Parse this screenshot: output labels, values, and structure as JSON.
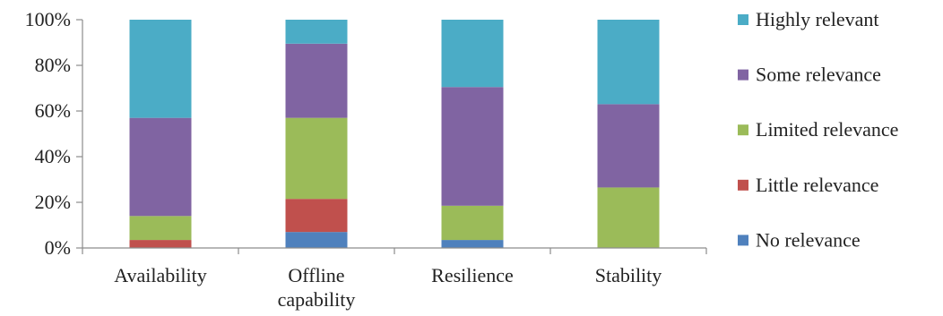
{
  "chart_data": {
    "type": "bar",
    "stacked": true,
    "percent_stacked": true,
    "title": "",
    "xlabel": "",
    "ylabel": "",
    "ylim": [
      0,
      100
    ],
    "y_ticks": [
      "0%",
      "20%",
      "40%",
      "60%",
      "80%",
      "100%"
    ],
    "grid": false,
    "legend_position": "right",
    "categories": [
      [
        "Availability"
      ],
      [
        "Offline",
        "capability"
      ],
      [
        "Resilience"
      ],
      [
        "Stability"
      ]
    ],
    "series": [
      {
        "name": "No relevance",
        "color": "#4f81bd",
        "values": [
          0,
          7,
          3.5,
          0
        ]
      },
      {
        "name": "Little relevance",
        "color": "#c0504d",
        "values": [
          3.5,
          14.5,
          0,
          0
        ]
      },
      {
        "name": "Limited relevance",
        "color": "#9bbb59",
        "values": [
          10.5,
          35.5,
          15,
          26.5
        ]
      },
      {
        "name": "Some relevance",
        "color": "#8064a2",
        "values": [
          43,
          32.5,
          52,
          36.5
        ]
      },
      {
        "name": "Highly relevant",
        "color": "#4bacc6",
        "values": [
          43,
          10.5,
          29.5,
          37
        ]
      }
    ],
    "legend_order": [
      "Highly relevant",
      "Some relevance",
      "Limited relevance",
      "Little relevance",
      "No relevance"
    ]
  }
}
